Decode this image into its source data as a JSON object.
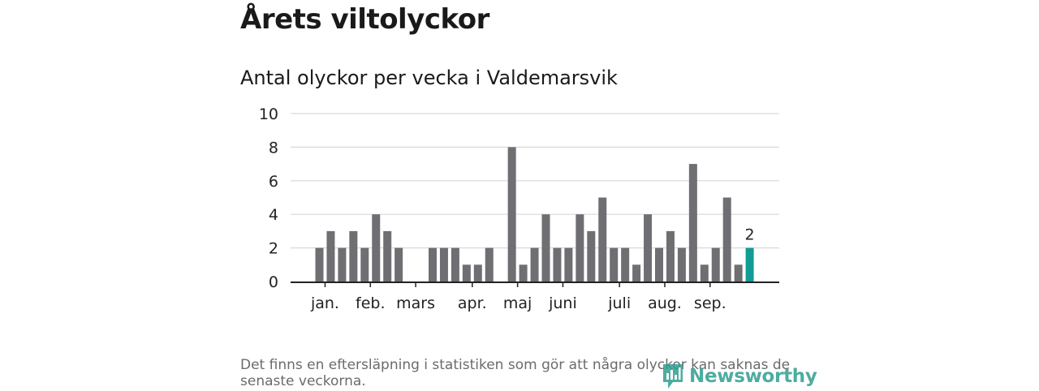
{
  "header": {
    "title": "Årets viltolyckor"
  },
  "chart_data": {
    "type": "bar",
    "title": "Antal olyckor per vecka i Valdemarsvik",
    "xlabel": "",
    "ylabel": "",
    "ylim": [
      0,
      10
    ],
    "yticks": [
      "0",
      "2",
      "4",
      "6",
      "8",
      "10"
    ],
    "weeks": [
      1,
      2,
      3,
      4,
      5,
      6,
      7,
      8,
      9,
      10,
      11,
      12,
      13,
      14,
      15,
      16,
      17,
      18,
      19,
      20,
      21,
      22,
      23,
      24,
      25,
      26,
      27,
      28,
      29,
      30,
      31,
      32,
      33,
      34,
      35,
      36,
      37,
      38,
      39
    ],
    "values": [
      2,
      3,
      2,
      3,
      2,
      4,
      3,
      2,
      0,
      0,
      2,
      2,
      2,
      1,
      1,
      2,
      0,
      8,
      1,
      2,
      4,
      2,
      2,
      4,
      3,
      5,
      2,
      2,
      1,
      4,
      2,
      3,
      2,
      7,
      1,
      2,
      5,
      1,
      2
    ],
    "highlight_index": 38,
    "highlight_label": "2",
    "month_labels": [
      {
        "label": "jan.",
        "week": 1.5
      },
      {
        "label": "feb.",
        "week": 5.5
      },
      {
        "label": "mars",
        "week": 9.5
      },
      {
        "label": "apr.",
        "week": 14.5
      },
      {
        "label": "maj",
        "week": 18.5
      },
      {
        "label": "juni",
        "week": 22.5
      },
      {
        "label": "juli",
        "week": 27.5
      },
      {
        "label": "aug.",
        "week": 31.5
      },
      {
        "label": "sep.",
        "week": 35.5
      }
    ],
    "colors": {
      "bar": "#6f6e73",
      "highlight": "#119c95",
      "grid": "#d9d9d9",
      "axis": "#222222"
    }
  },
  "footer": {
    "note": "Det finns en eftersläpning i statistiken som gör att några olyckor kan saknas de senaste veckorna.",
    "brand": "Newsworthy",
    "brand_color": "#2f9e8f"
  }
}
